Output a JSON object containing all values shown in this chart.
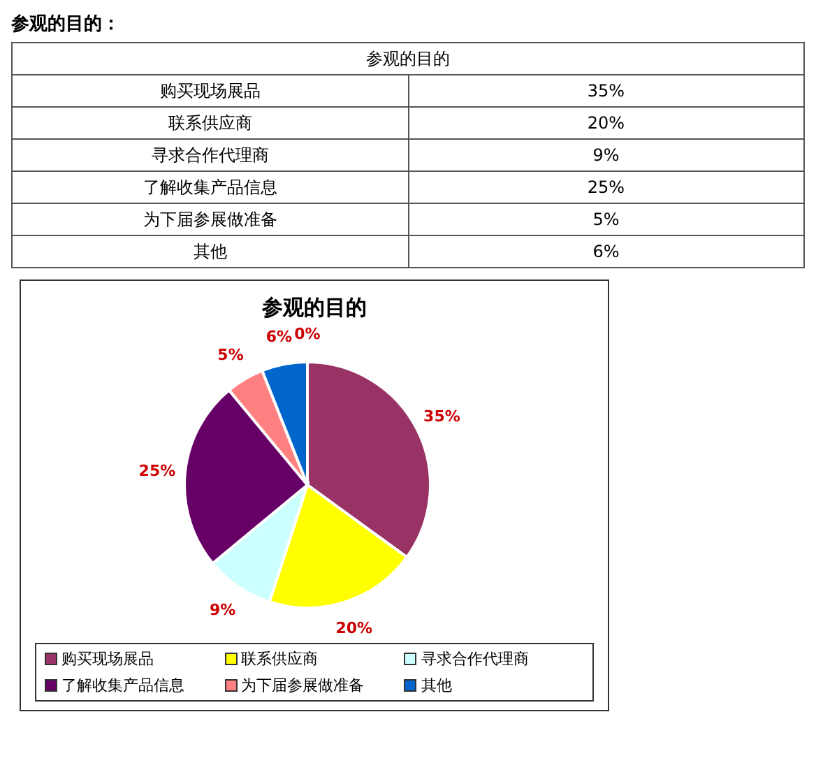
{
  "chart_data": {
    "type": "pie",
    "title": "参观的目的",
    "annotations": [
      "参观的目的："
    ],
    "categories": [
      "购买现场展品",
      "联系供应商",
      "寻求合作代理商",
      "了解收集产品信息",
      "为下届参展做准备",
      "其他",
      null
    ],
    "values": [
      35,
      20,
      9,
      25,
      5,
      6,
      0
    ],
    "colors": [
      "#993366",
      "#ffff00",
      "#ccffff",
      "#660066",
      "#ff8080",
      "#0066cc",
      "#ffffff"
    ],
    "value_labels": [
      "35%",
      "20%",
      "9%",
      "25%",
      "5%",
      "6%",
      "0%"
    ],
    "legend": "bottom"
  }
}
